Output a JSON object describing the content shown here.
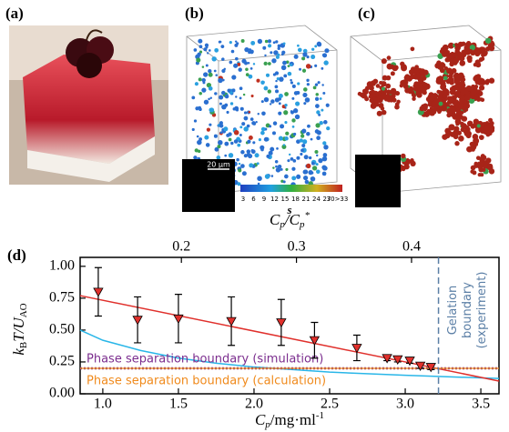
{
  "panels": {
    "a": {
      "label": "(a)"
    },
    "b": {
      "label": "(b)",
      "scale_bar": "20 μm",
      "colorbar_labels": [
        "3",
        "6",
        "9",
        "12",
        "15",
        "18",
        "21",
        "24",
        "27",
        "30>33"
      ],
      "colorbar_title": "s"
    },
    "c": {
      "label": "(c)"
    }
  },
  "chart_data": {
    "type": "scatter",
    "panel_label": "(d)",
    "x_label": [
      "C",
      "p",
      "/mg·ml",
      "-1"
    ],
    "y_label": [
      "k",
      "B",
      "T/U",
      "AO"
    ],
    "x2_label": [
      "C",
      "p",
      "/C",
      "p",
      "*"
    ],
    "xlim": [
      0.85,
      3.62
    ],
    "xticks": [
      {
        "value": 1.0,
        "label": "1.0"
      },
      1.5,
      {
        "value": 2.0,
        "label": "2.0"
      },
      2.5,
      {
        "value": 3.0,
        "label": "3.0"
      },
      3.5
    ],
    "x2lim": [
      0.112,
      0.476
    ],
    "x2ticks": [
      0.2,
      0.3,
      0.4
    ],
    "ylim": [
      0,
      1.07
    ],
    "yticks": [
      {
        "value": 0,
        "label": "0.00"
      },
      0.25,
      {
        "value": 0.5,
        "label": "0.50"
      },
      0.75,
      {
        "value": 1,
        "label": "1.00"
      }
    ],
    "series": [
      {
        "color": "#e0302c",
        "x": [
          0.97,
          1.23,
          1.5,
          1.85,
          2.18,
          2.4,
          2.68,
          2.88,
          2.95,
          3.03,
          3.1,
          3.17
        ],
        "values": [
          0.8,
          0.58,
          0.59,
          0.57,
          0.56,
          0.42,
          0.36,
          0.28,
          0.27,
          0.26,
          0.22,
          0.21
        ],
        "errors": [
          0.19,
          0.18,
          0.19,
          0.19,
          0.18,
          0.14,
          0.1,
          0.02,
          0.02,
          0.02,
          0.02,
          0.02
        ]
      },
      {
        "color": "#e0302c",
        "x": [
          0.85,
          3.62
        ],
        "values": [
          0.77,
          0.1
        ]
      },
      {
        "color": "#29b6e8",
        "x": [
          0.85,
          1.0,
          1.25,
          1.5,
          1.75,
          2.0,
          2.5,
          3.0,
          3.5,
          3.62
        ],
        "values": [
          0.5,
          0.42,
          0.34,
          0.28,
          0.24,
          0.21,
          0.17,
          0.145,
          0.125,
          0.12
        ]
      }
    ],
    "hlines": [
      {
        "name": "Phase separation boundary (simulation)",
        "value": 0.2,
        "color": "#7b2d8e"
      },
      {
        "name": "Phase separation boundary (calculation)",
        "value": 0.2,
        "color": "#f08a1c"
      }
    ],
    "vline": {
      "value": 3.22,
      "color": "#5b7fa6",
      "labels": [
        "Gelation",
        "boundary",
        "(experiment)"
      ]
    }
  }
}
